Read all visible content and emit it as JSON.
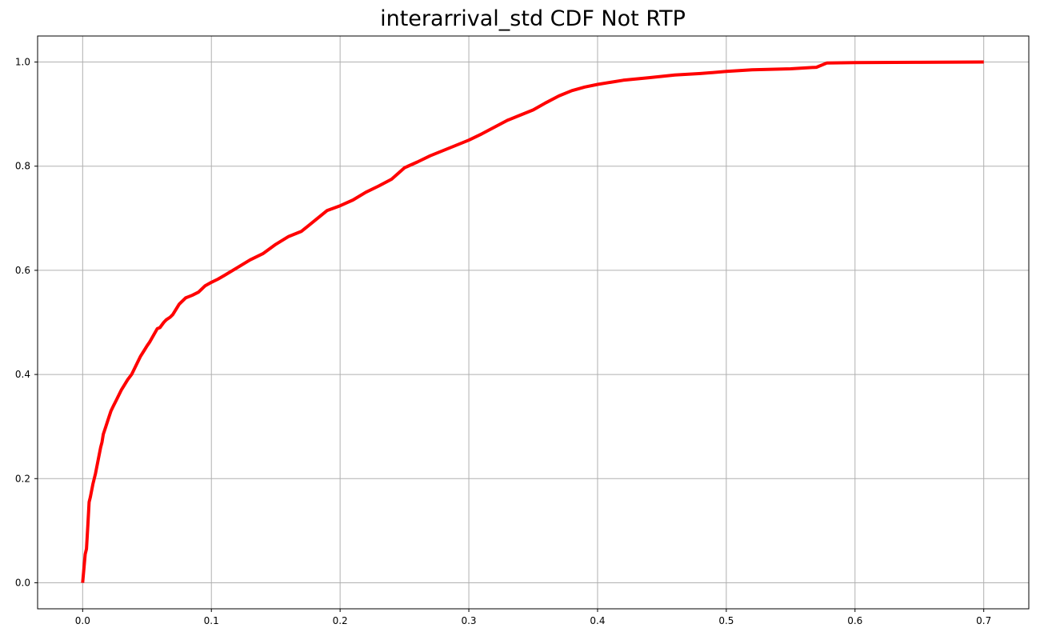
{
  "chart_data": {
    "type": "line",
    "title": "interarrival_std CDF Not RTP",
    "xlabel": "",
    "ylabel": "",
    "xlim": [
      -0.035,
      0.735
    ],
    "ylim": [
      -0.05,
      1.05
    ],
    "grid": true,
    "x_ticks": [
      "0.0",
      "0.1",
      "0.2",
      "0.3",
      "0.4",
      "0.5",
      "0.6",
      "0.7"
    ],
    "y_ticks": [
      "0.0",
      "0.2",
      "0.4",
      "0.6",
      "0.8",
      "1.0"
    ],
    "line_color": "#ff0000",
    "series": [
      {
        "x": [
          0.0,
          0.002,
          0.003,
          0.004,
          0.005,
          0.006,
          0.008,
          0.01,
          0.012,
          0.014,
          0.015,
          0.016,
          0.018,
          0.02,
          0.022,
          0.024,
          0.026,
          0.028,
          0.03,
          0.032,
          0.035,
          0.038,
          0.04,
          0.043,
          0.045,
          0.048,
          0.05,
          0.052,
          0.055,
          0.058,
          0.06,
          0.063,
          0.065,
          0.068,
          0.07,
          0.075,
          0.08,
          0.085,
          0.09,
          0.095,
          0.1,
          0.105,
          0.11,
          0.12,
          0.13,
          0.14,
          0.15,
          0.16,
          0.17,
          0.18,
          0.19,
          0.2,
          0.21,
          0.22,
          0.23,
          0.24,
          0.25,
          0.26,
          0.27,
          0.28,
          0.29,
          0.3,
          0.31,
          0.32,
          0.33,
          0.34,
          0.35,
          0.36,
          0.37,
          0.38,
          0.39,
          0.4,
          0.42,
          0.44,
          0.46,
          0.48,
          0.5,
          0.52,
          0.55,
          0.57,
          0.578,
          0.6,
          0.65,
          0.7
        ],
        "y": [
          0.0,
          0.055,
          0.065,
          0.11,
          0.155,
          0.165,
          0.19,
          0.21,
          0.235,
          0.26,
          0.27,
          0.285,
          0.3,
          0.315,
          0.33,
          0.34,
          0.35,
          0.36,
          0.37,
          0.378,
          0.39,
          0.4,
          0.41,
          0.425,
          0.435,
          0.447,
          0.455,
          0.462,
          0.475,
          0.488,
          0.49,
          0.5,
          0.505,
          0.51,
          0.515,
          0.535,
          0.547,
          0.552,
          0.558,
          0.57,
          0.577,
          0.583,
          0.59,
          0.605,
          0.62,
          0.632,
          0.65,
          0.665,
          0.675,
          0.695,
          0.715,
          0.724,
          0.735,
          0.75,
          0.762,
          0.775,
          0.797,
          0.808,
          0.82,
          0.83,
          0.84,
          0.85,
          0.862,
          0.875,
          0.888,
          0.898,
          0.908,
          0.922,
          0.935,
          0.945,
          0.952,
          0.957,
          0.965,
          0.97,
          0.975,
          0.978,
          0.982,
          0.985,
          0.987,
          0.99,
          0.998,
          0.999,
          0.9995,
          1.0
        ]
      }
    ]
  }
}
